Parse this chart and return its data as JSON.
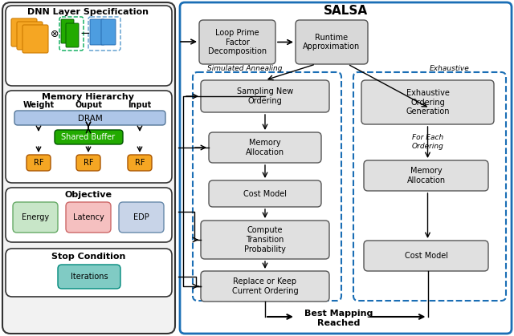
{
  "title": "SALSA",
  "left_panel_title": "DNN Layer Specification",
  "memory_hierarchy_title": "Memory Hierarchy",
  "objective_title": "Objective",
  "stop_condition_title": "Stop Condition",
  "memory_labels": [
    "Weight",
    "Ouput",
    "Input"
  ],
  "dram_label": "DRAM",
  "shared_buffer_label": "Shared Buffer",
  "rf_label": "RF",
  "energy_label": "Energy",
  "latency_label": "Latency",
  "edp_label": "EDP",
  "iterations_label": "Iterations",
  "loop_prime_label": "Loop Prime\nFactor\nDecomposition",
  "runtime_approx_label": "Runtime\nApproximation",
  "simulated_annealing_label": "Simulated Annealing",
  "exhaustive_label": "Exhaustive",
  "sampling_label": "Sampling New\nOrdering",
  "memory_alloc_sa_label": "Memory\nAllocation",
  "cost_model_sa_label": "Cost Model",
  "compute_transition_label": "Compute\nTransition\nProbability",
  "replace_keep_label": "Replace or Keep\nCurrent Ordering",
  "exhaustive_ordering_label": "Exhaustive\nOrdering\nGeneration",
  "for_each_ordering_label": "For Each\nOrdering",
  "memory_alloc_ex_label": "Memory\nAllocation",
  "cost_model_ex_label": "Cost Model",
  "best_mapping_label": "Best Mapping\nReached",
  "salsa_border_color": "#1a6eb5",
  "dram_color": "#aec6e8",
  "shared_buffer_color": "#22aa00",
  "rf_color": "#f5a623",
  "energy_color": "#c8e6c8",
  "latency_color": "#f5c0c0",
  "edp_color": "#c8d4e8",
  "iterations_color": "#80cbc4",
  "flow_box_color": "#e0e0e0",
  "loop_prime_color": "#d8d8d8",
  "runtime_approx_color": "#d8d8d8"
}
